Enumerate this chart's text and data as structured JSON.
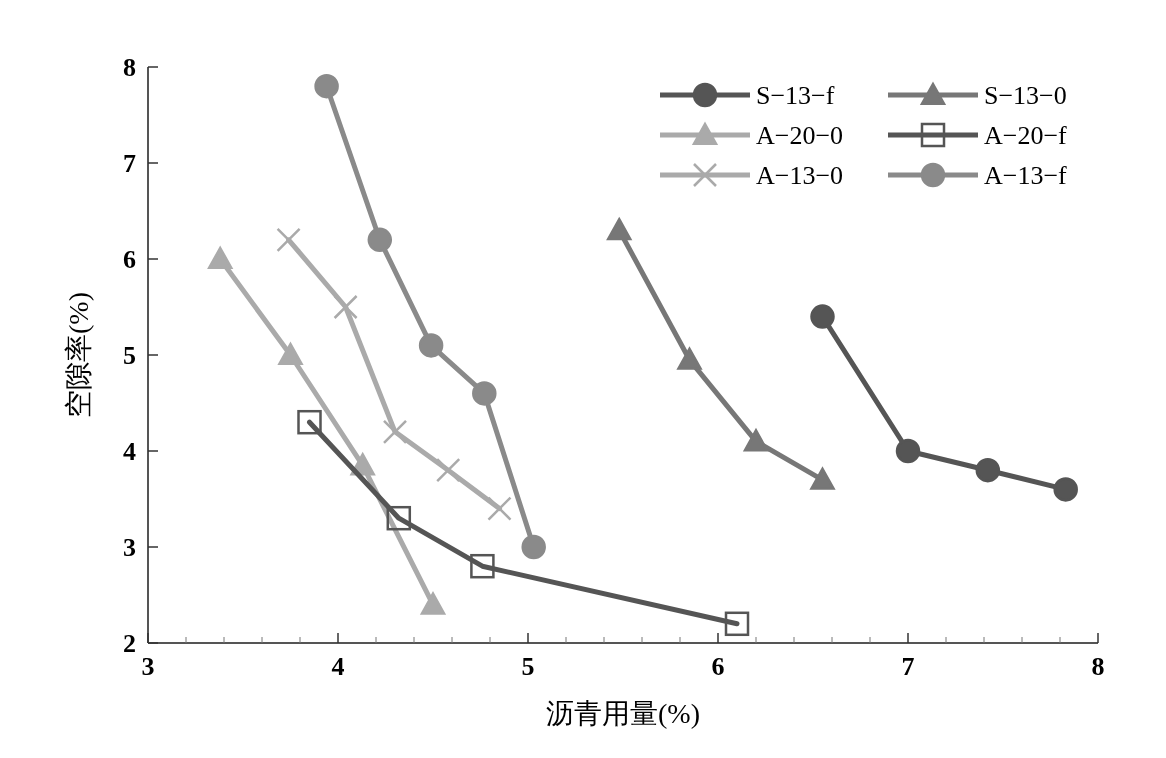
{
  "chart_data": {
    "type": "line",
    "xlabel": "沥青用量(%)",
    "ylabel": "空隙率(%)",
    "xlim": [
      3,
      8
    ],
    "ylim": [
      2,
      8
    ],
    "xticks": [
      3,
      4,
      5,
      6,
      7,
      8
    ],
    "yticks": [
      2,
      3,
      4,
      5,
      6,
      7,
      8
    ],
    "grid": false,
    "legend": "top right",
    "series": [
      {
        "name": "S−13−f",
        "color": "#555555",
        "marker": "circle",
        "x": [
          6.55,
          7.0,
          7.42,
          7.83
        ],
        "values": [
          5.4,
          4.0,
          3.8,
          3.6
        ]
      },
      {
        "name": "S−13−0",
        "color": "#777777",
        "marker": "triangle",
        "x": [
          5.48,
          5.85,
          6.2,
          6.55
        ],
        "values": [
          6.3,
          4.95,
          4.1,
          3.7
        ]
      },
      {
        "name": "A−20−0",
        "color": "#aaaaaa",
        "marker": "triangle",
        "x": [
          3.38,
          3.75,
          4.13,
          4.5
        ],
        "values": [
          6.0,
          5.0,
          3.85,
          2.4
        ]
      },
      {
        "name": "A−20−f",
        "color": "#555555",
        "marker": "square",
        "x": [
          3.85,
          4.32,
          4.76,
          6.1
        ],
        "values": [
          4.3,
          3.3,
          2.8,
          2.2
        ]
      },
      {
        "name": "A−13−0",
        "color": "#aaaaaa",
        "marker": "cross",
        "x": [
          3.74,
          4.04,
          4.3,
          4.58,
          4.85
        ],
        "values": [
          6.2,
          5.5,
          4.2,
          3.8,
          3.4
        ]
      },
      {
        "name": "A−13−f",
        "color": "#8a8a8a",
        "marker": "circle",
        "x": [
          3.94,
          4.22,
          4.49,
          4.77,
          5.03
        ],
        "values": [
          7.8,
          6.2,
          5.1,
          4.6,
          3.0
        ]
      }
    ]
  }
}
